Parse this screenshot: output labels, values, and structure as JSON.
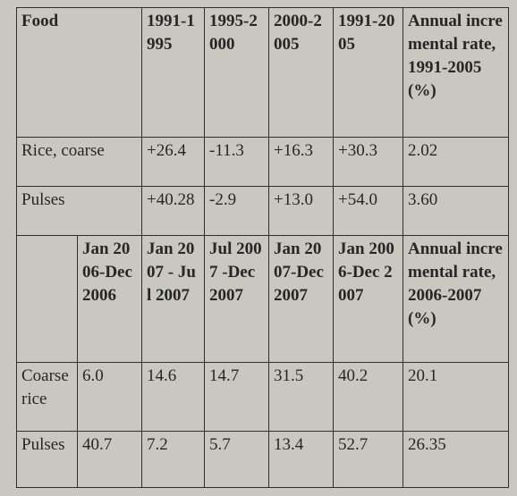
{
  "table1": {
    "header": [
      "Food",
      "1991-1995",
      "1995-2000",
      "2000-2005",
      "1991-2005",
      "Annual incremental rate, 1991-2005 (%)"
    ],
    "rows": [
      [
        "Rice, coarse",
        "+26.4",
        "-11.3",
        "+16.3",
        "+30.3",
        "2.02"
      ],
      [
        "Pulses",
        "+40.28",
        "-2.9",
        "+13.0",
        "+54.0",
        "3.60"
      ]
    ]
  },
  "table2": {
    "header": [
      "Jan 2006-Dec 2006",
      "Jan 2007 - Jul 2007",
      "Jul 2007 -Dec 2007",
      "Jan 2007-Dec 2007",
      "Jan 2006-Dec 2007",
      "Annual incremental rate, 2006-2007 (%)"
    ],
    "rows": [
      [
        "Coarse rice",
        "6.0",
        "14.6",
        "14.7",
        "31.5",
        "40.2",
        "20.1"
      ],
      [
        "Pulses",
        "40.7",
        "7.2",
        "5.7",
        "13.4",
        "52.7",
        "26.35"
      ]
    ]
  }
}
